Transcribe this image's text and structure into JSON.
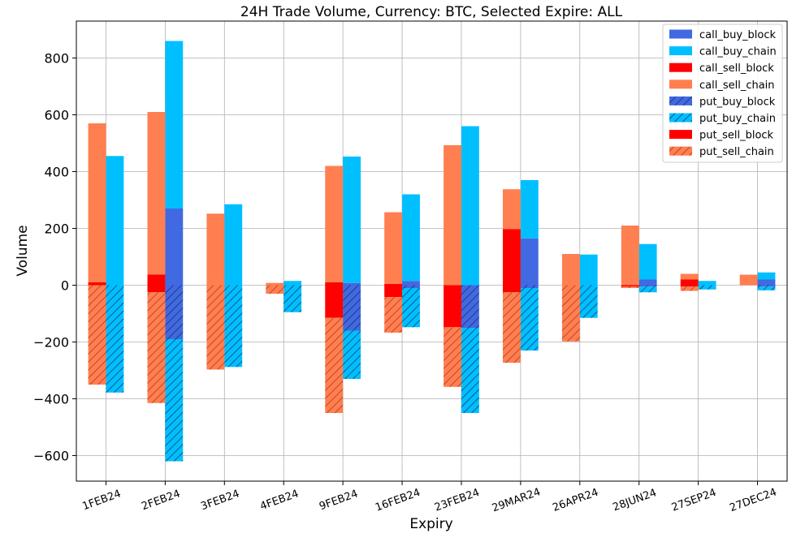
{
  "chart_data": {
    "type": "bar",
    "title": "24H Trade Volume, Currency: BTC, Selected Expire: ALL",
    "xlabel": "Expiry",
    "ylabel": "Volume",
    "ylim": [
      -690,
      930
    ],
    "yticks": [
      -600,
      -400,
      -200,
      0,
      200,
      400,
      600,
      800
    ],
    "grid": true,
    "legend_position": "top-right",
    "categories": [
      "1FEB24",
      "2FEB24",
      "3FEB24",
      "4FEB24",
      "9FEB24",
      "16FEB24",
      "23FEB24",
      "29MAR24",
      "26APR24",
      "28JUN24",
      "27SEP24",
      "27DEC24"
    ],
    "series": [
      {
        "name": "call_buy_block",
        "group": "buy",
        "sign": 1,
        "hatch": false,
        "color": "#4169e1",
        "values": [
          0,
          270,
          0,
          0,
          8,
          15,
          0,
          165,
          0,
          20,
          0,
          20
        ]
      },
      {
        "name": "call_buy_chain",
        "group": "buy",
        "sign": 1,
        "hatch": false,
        "color": "#00bfff",
        "values": [
          455,
          590,
          285,
          15,
          445,
          305,
          560,
          205,
          108,
          125,
          15,
          25
        ]
      },
      {
        "name": "call_sell_block",
        "group": "sell",
        "sign": 1,
        "hatch": false,
        "color": "#ff0000",
        "values": [
          10,
          38,
          0,
          0,
          10,
          5,
          0,
          198,
          0,
          0,
          20,
          0
        ]
      },
      {
        "name": "call_sell_chain",
        "group": "sell",
        "sign": 1,
        "hatch": false,
        "color": "#ff7f50",
        "values": [
          560,
          572,
          252,
          8,
          410,
          252,
          493,
          140,
          110,
          210,
          20,
          37
        ]
      },
      {
        "name": "put_buy_block",
        "group": "buy",
        "sign": -1,
        "hatch": true,
        "color": "#4169e1",
        "values": [
          0,
          190,
          0,
          0,
          160,
          10,
          150,
          10,
          0,
          5,
          0,
          5
        ]
      },
      {
        "name": "put_buy_chain",
        "group": "buy",
        "sign": -1,
        "hatch": true,
        "color": "#00bfff",
        "values": [
          378,
          430,
          288,
          95,
          170,
          138,
          300,
          220,
          115,
          20,
          15,
          13
        ]
      },
      {
        "name": "put_sell_block",
        "group": "sell",
        "sign": -1,
        "hatch": false,
        "color": "#ff0000",
        "values": [
          0,
          25,
          0,
          0,
          115,
          42,
          148,
          25,
          0,
          5,
          5,
          0
        ]
      },
      {
        "name": "put_sell_chain",
        "group": "sell",
        "sign": -1,
        "hatch": true,
        "color": "#ff7f50",
        "values": [
          350,
          390,
          297,
          30,
          335,
          125,
          210,
          248,
          198,
          5,
          15,
          0
        ]
      }
    ]
  }
}
